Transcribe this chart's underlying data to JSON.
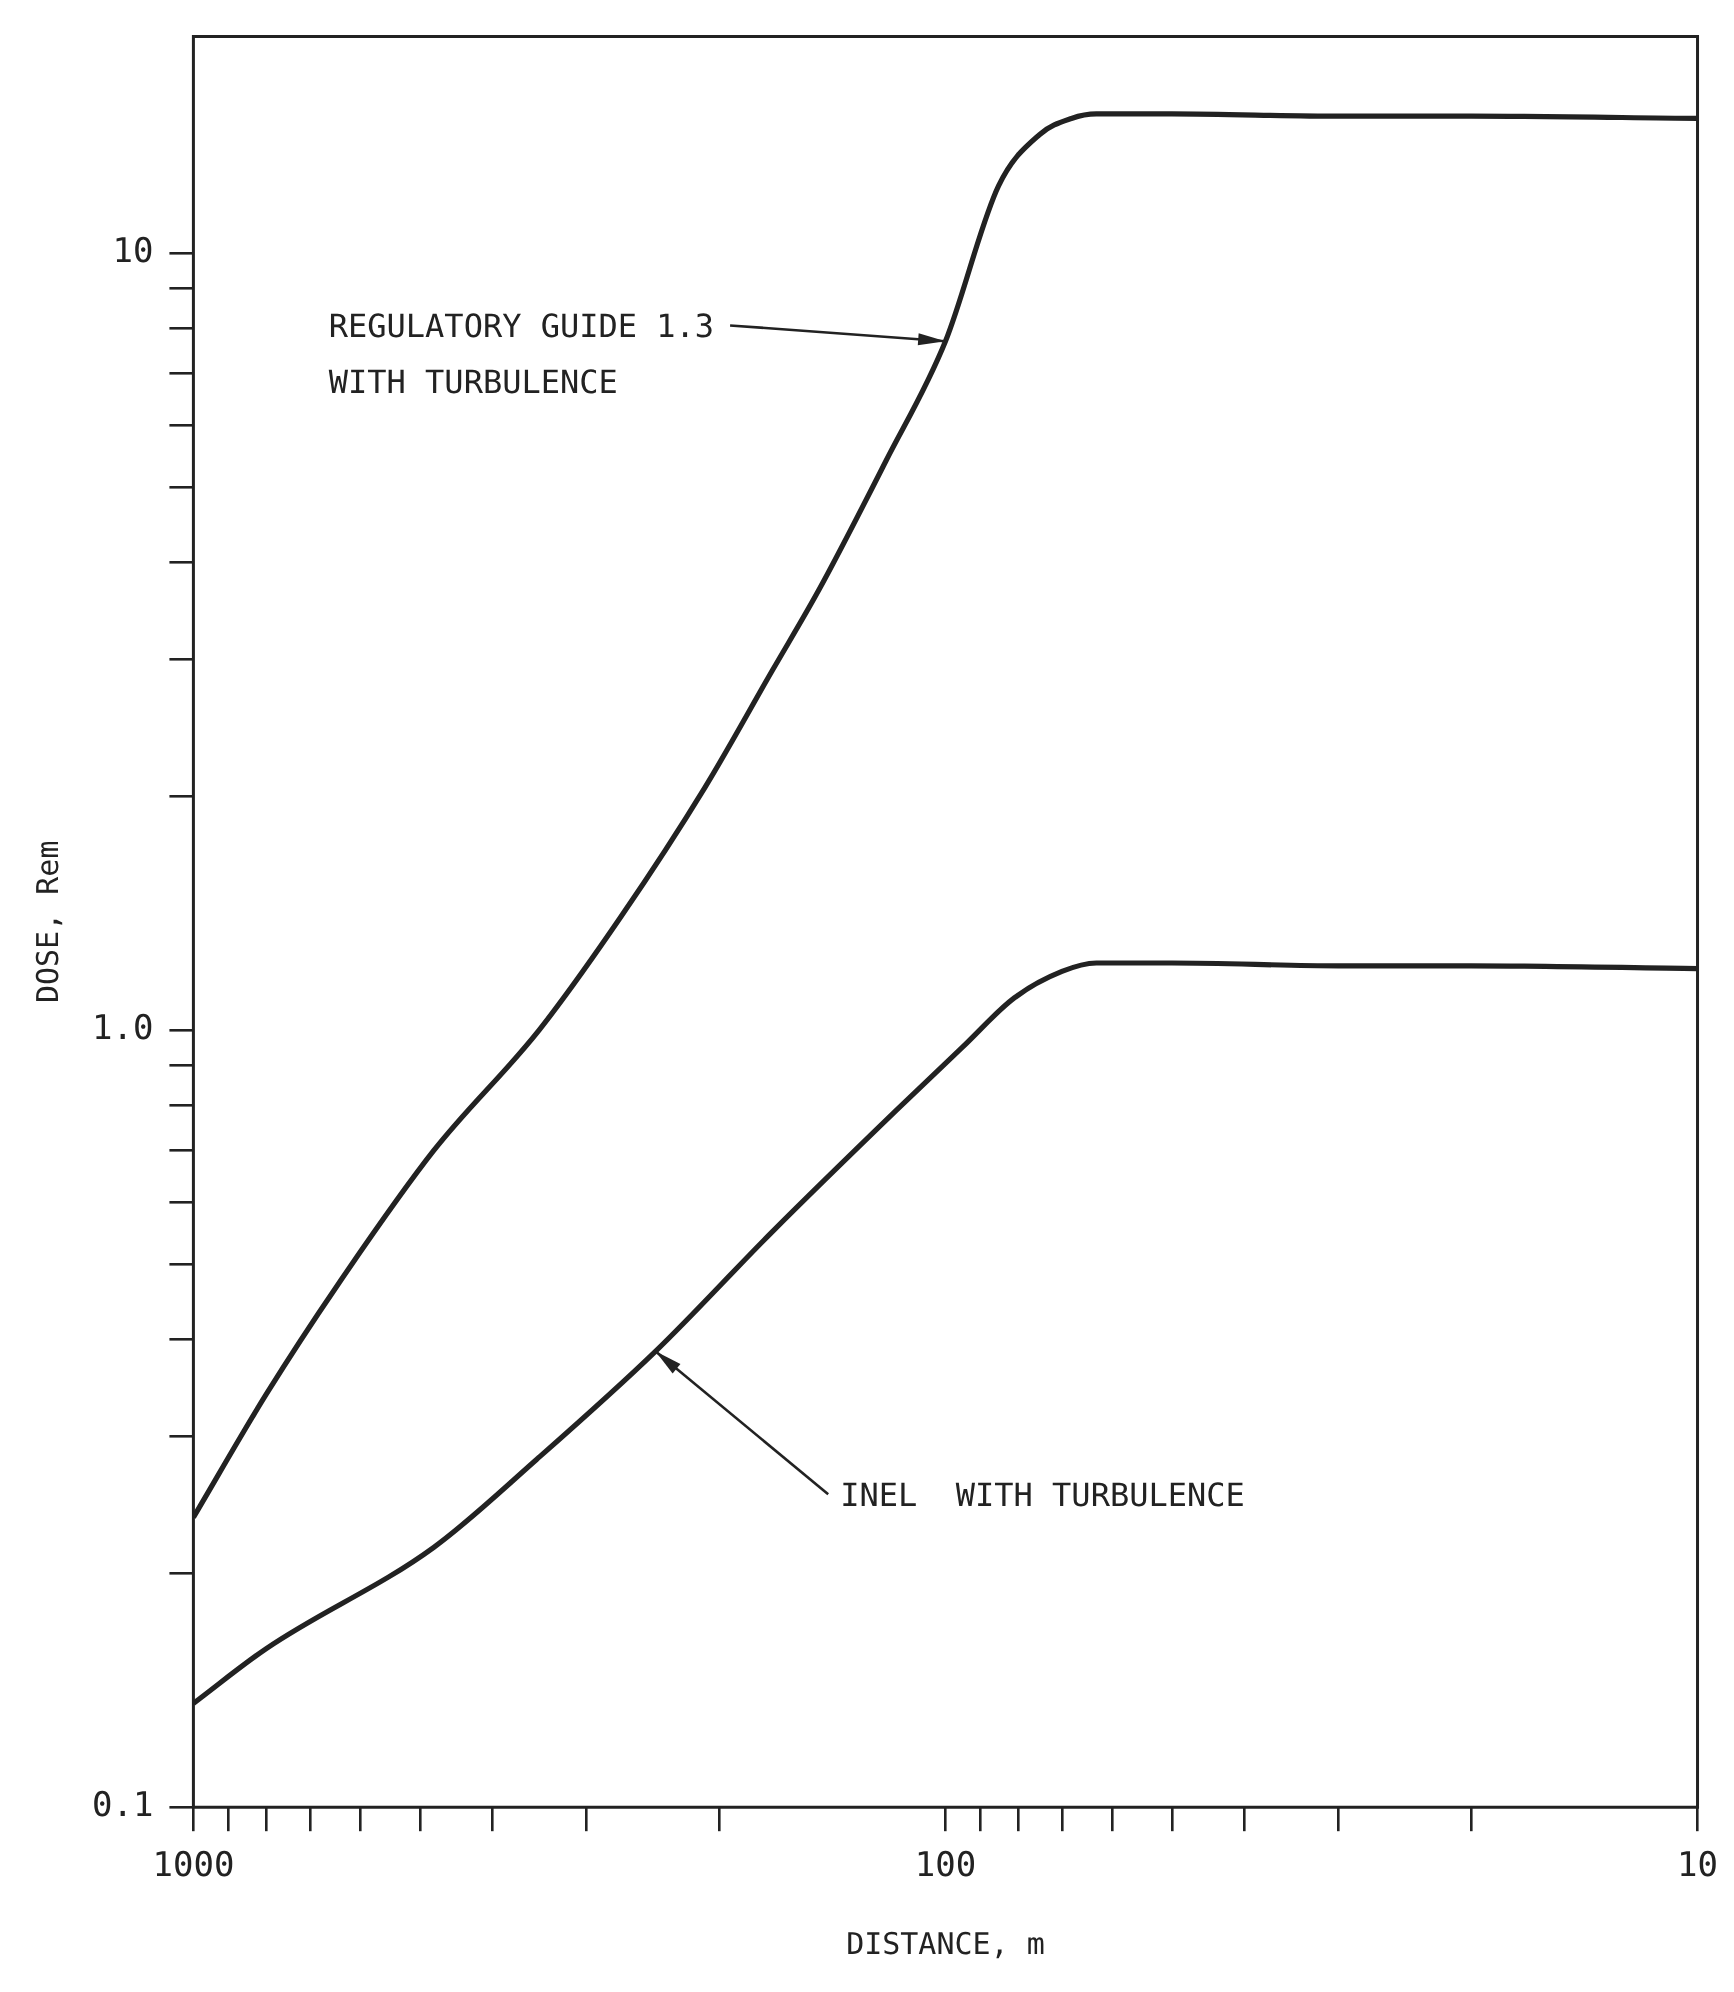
{
  "chart_data": {
    "type": "line",
    "xlabel": "DISTANCE, m",
    "ylabel": "DOSE, Rem",
    "log": "xy",
    "grid": false,
    "legend": false,
    "marker": "none",
    "line_style": "solid",
    "xlim": [
      1000,
      10
    ],
    "xticks": [
      {
        "value": 1000,
        "label": "1000"
      },
      {
        "value": 900,
        "label": null
      },
      {
        "value": 800,
        "label": null
      },
      {
        "value": 700,
        "label": null
      },
      {
        "value": 600,
        "label": null
      },
      {
        "value": 500,
        "label": null
      },
      {
        "value": 400,
        "label": null
      },
      {
        "value": 300,
        "label": null
      },
      {
        "value": 200,
        "label": null
      },
      {
        "value": 100,
        "label": "100"
      },
      {
        "value": 90,
        "label": null
      },
      {
        "value": 80,
        "label": null
      },
      {
        "value": 70,
        "label": null
      },
      {
        "value": 60,
        "label": null
      },
      {
        "value": 50,
        "label": null
      },
      {
        "value": 40,
        "label": null
      },
      {
        "value": 30,
        "label": null
      },
      {
        "value": 20,
        "label": null
      },
      {
        "value": 10,
        "label": "10"
      }
    ],
    "ylim": [
      0.1,
      19
    ],
    "yticks": [
      {
        "value": 0.1,
        "label": "0.1"
      },
      {
        "value": 0.2,
        "label": null
      },
      {
        "value": 0.3,
        "label": null
      },
      {
        "value": 0.4,
        "label": null
      },
      {
        "value": 0.5,
        "label": null
      },
      {
        "value": 0.6,
        "label": null
      },
      {
        "value": 0.7,
        "label": null
      },
      {
        "value": 0.8,
        "label": null
      },
      {
        "value": 0.9,
        "label": null
      },
      {
        "value": 1,
        "label": "1.0"
      },
      {
        "value": 2,
        "label": null
      },
      {
        "value": 3,
        "label": null
      },
      {
        "value": 4,
        "label": null
      },
      {
        "value": 5,
        "label": null
      },
      {
        "value": 6,
        "label": null
      },
      {
        "value": 7,
        "label": null
      },
      {
        "value": 8,
        "label": null
      },
      {
        "value": 9,
        "label": null
      },
      {
        "value": 10,
        "label": "10"
      }
    ],
    "series": [
      {
        "color": "#222222",
        "x": [
          1000,
          800,
          643,
          479,
          347,
          270,
          209,
          170,
          147,
          120,
          100,
          85,
          75,
          68,
          63,
          50,
          30,
          20,
          10
        ],
        "values": [
          0.236,
          0.34,
          0.47,
          0.7,
          1.0,
          1.4,
          2.05,
          2.9,
          3.7,
          5.4,
          7.7,
          12.2,
          14.2,
          14.9,
          15.1,
          15.1,
          15.0,
          15.0,
          14.9
        ]
      },
      {
        "color": "#222222",
        "x": [
          1000,
          800,
          479,
          350,
          243,
          170,
          116,
          95,
          81,
          70,
          63,
          50,
          30,
          20,
          10
        ],
        "values": [
          0.136,
          0.16,
          0.216,
          0.28,
          0.386,
          0.55,
          0.79,
          0.95,
          1.1,
          1.19,
          1.22,
          1.22,
          1.21,
          1.21,
          1.2
        ]
      }
    ],
    "annotations": [
      {
        "text": "REGULATORY GUIDE 1.3\nWITH TURBULENCE",
        "x": 100,
        "y": 7.7
      },
      {
        "text": "INEL  WITH TURBULENCE",
        "x": 243,
        "y": 0.386
      }
    ]
  }
}
